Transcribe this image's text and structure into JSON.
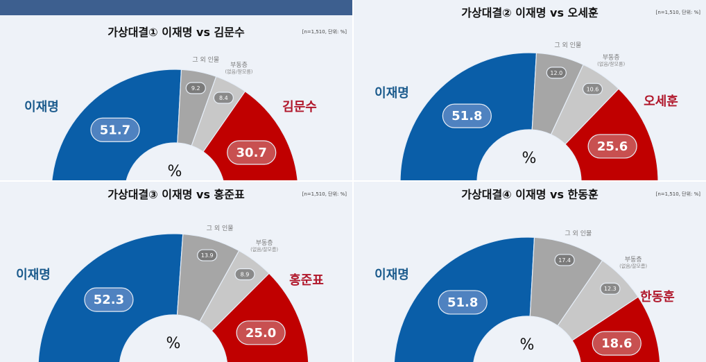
{
  "chart_data": [
    {
      "type": "pie",
      "subtype": "half-donut",
      "title": "가상대결① 이재명 vs 김문수",
      "note": "[n=1,510, 단위: %]",
      "center_label": "%",
      "categories": [
        "이재명",
        "그 외 인물",
        "부동층",
        "김문수"
      ],
      "category_sub": {
        "부동층": "(없음/잘모름)"
      },
      "values": [
        51.7,
        9.2,
        8.4,
        30.7
      ],
      "value_labels": [
        "51.7",
        "9.2",
        "8.4",
        "30.7"
      ]
    },
    {
      "type": "pie",
      "subtype": "half-donut",
      "title": "가상대결② 이재명 vs 오세훈",
      "note": "[n=1,510, 단위: %]",
      "center_label": "%",
      "categories": [
        "이재명",
        "그 외 인물",
        "부동층",
        "오세훈"
      ],
      "category_sub": {
        "부동층": "(없음/잘모름)"
      },
      "values": [
        51.8,
        12.0,
        10.6,
        25.6
      ],
      "value_labels": [
        "51.8",
        "12.0",
        "10.6",
        "25.6"
      ]
    },
    {
      "type": "pie",
      "subtype": "half-donut",
      "title": "가상대결③ 이재명 vs 홍준표",
      "note": "[n=1,510, 단위: %]",
      "center_label": "%",
      "categories": [
        "이재명",
        "그 외 인물",
        "부동층",
        "홍준표"
      ],
      "category_sub": {
        "부동층": "(없음/잘모름)"
      },
      "values": [
        52.3,
        13.9,
        8.9,
        25.0
      ],
      "value_labels": [
        "52.3",
        "13.9",
        "8.9",
        "25.0"
      ]
    },
    {
      "type": "pie",
      "subtype": "half-donut",
      "title": "가상대결④ 이재명 vs 한동훈",
      "note": "[n=1,510, 단위: %]",
      "center_label": "%",
      "categories": [
        "이재명",
        "그 외 인물",
        "부동층",
        "한동훈"
      ],
      "category_sub": {
        "부동층": "(없음/잘모름)"
      },
      "values": [
        51.8,
        17.4,
        12.3,
        18.6
      ],
      "value_labels": [
        "51.8",
        "17.4",
        "12.3",
        "18.6"
      ]
    }
  ],
  "colors": {
    "lee": "#0a5ea8",
    "others": "#a6a6a6",
    "undecided": "#c8c8c8",
    "opponent": "#c00000",
    "lee_text": "#1a5a8c",
    "opp_text": "#b0162a",
    "panel_bg": "#eef2f8",
    "banner": "#3d5f8f"
  }
}
